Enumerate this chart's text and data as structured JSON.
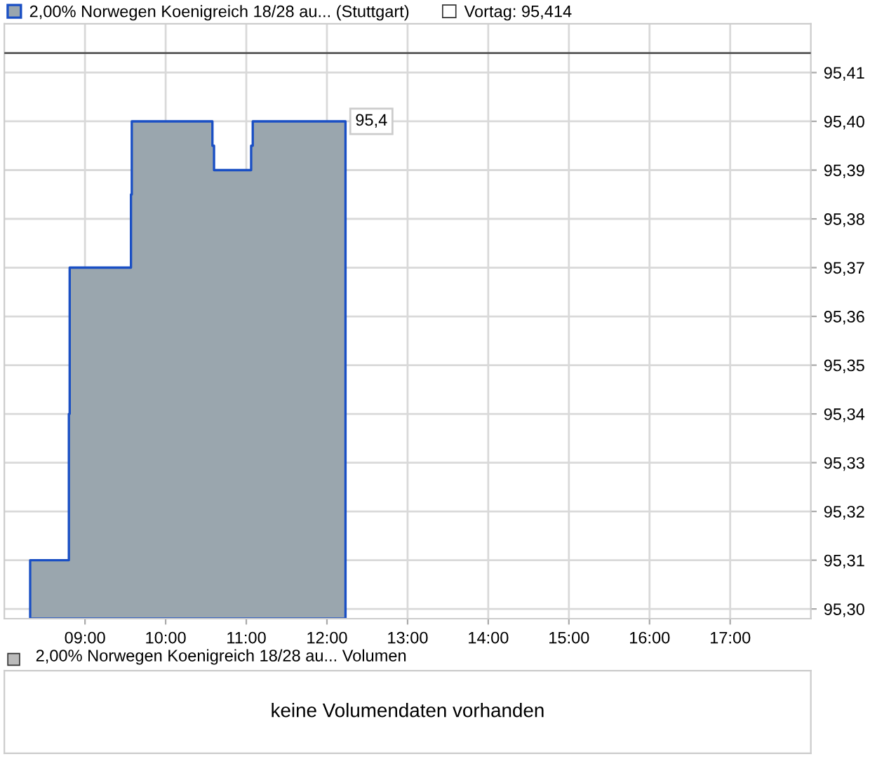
{
  "chart_data": [
    {
      "type": "area",
      "series": [
        {
          "name": "2,00% Norwegen Koenigreich 18/28 au... (Stuttgart)",
          "color": "#1a4fc4",
          "x": [
            8.32,
            8.8,
            8.81,
            9.57,
            9.58,
            10.58,
            10.6,
            11.06,
            11.08,
            12.23
          ],
          "values": [
            95.31,
            95.34,
            95.37,
            95.385,
            95.4,
            95.395,
            95.39,
            95.395,
            95.4,
            95.4
          ],
          "value_labels": [
            null,
            null,
            null,
            null,
            null,
            null,
            null,
            null,
            null,
            "95,4"
          ]
        }
      ],
      "xlim": [
        8.0,
        18.0
      ],
      "xticks": [
        {
          "value": 9,
          "label": "09:00"
        },
        {
          "value": 10,
          "label": "10:00"
        },
        {
          "value": 11,
          "label": "11:00"
        },
        {
          "value": 12,
          "label": "12:00"
        },
        {
          "value": 13,
          "label": "13:00"
        },
        {
          "value": 14,
          "label": "14:00"
        },
        {
          "value": 15,
          "label": "15:00"
        },
        {
          "value": 16,
          "label": "16:00"
        },
        {
          "value": 17,
          "label": "17:00"
        }
      ],
      "ylim": [
        95.298,
        95.42
      ],
      "yticks": [
        {
          "value": 95.3,
          "label": "95,30"
        },
        {
          "value": 95.31,
          "label": "95,31"
        },
        {
          "value": 95.32,
          "label": "95,32"
        },
        {
          "value": 95.33,
          "label": "95,33"
        },
        {
          "value": 95.34,
          "label": "95,34"
        },
        {
          "value": 95.35,
          "label": "95,35"
        },
        {
          "value": 95.36,
          "label": "95,36"
        },
        {
          "value": 95.37,
          "label": "95,37"
        },
        {
          "value": 95.38,
          "label": "95,38"
        },
        {
          "value": 95.39,
          "label": "95,39"
        },
        {
          "value": 95.4,
          "label": "95,40"
        },
        {
          "value": 95.41,
          "label": "95,41"
        }
      ],
      "ref_lines": [
        {
          "axis": "y",
          "value": 95.414,
          "label": "Vortag: 95,414",
          "color": "#555555"
        }
      ],
      "grid": true,
      "legend": "top left"
    },
    {
      "type": "other",
      "title": "2,00% Norwegen Koenigreich 18/28 au... Volumen",
      "annotations": [
        "keine Volumendaten vorhanden"
      ]
    }
  ]
}
